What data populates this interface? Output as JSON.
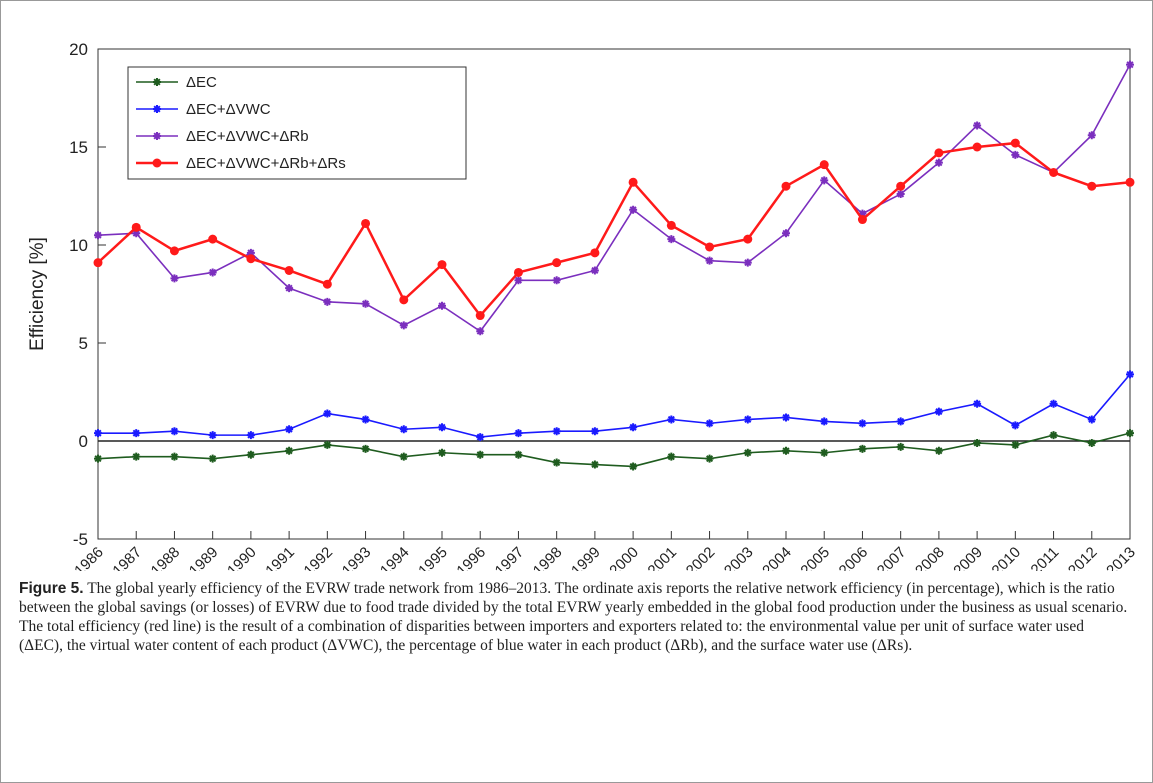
{
  "chart_data": {
    "type": "line",
    "ylabel": "Efficiency [%]",
    "categories": [
      "1986",
      "1987",
      "1988",
      "1989",
      "1990",
      "1991",
      "1992",
      "1993",
      "1994",
      "1995",
      "1996",
      "1997",
      "1998",
      "1999",
      "2000",
      "2001",
      "2002",
      "2003",
      "2004",
      "2005",
      "2006",
      "2007",
      "2008",
      "2009",
      "2010",
      "2011",
      "2012",
      "2013"
    ],
    "ylim": [
      -5,
      20
    ],
    "yticks": [
      -5,
      0,
      5,
      10,
      15,
      20
    ],
    "legend": "upper left",
    "series": [
      {
        "name": "ΔEC",
        "color": "#1f5c1f",
        "marker": "asterisk",
        "values": [
          -0.9,
          -0.8,
          -0.8,
          -0.9,
          -0.7,
          -0.5,
          -0.2,
          -0.4,
          -0.8,
          -0.6,
          -0.7,
          -0.7,
          -1.1,
          -1.2,
          -1.3,
          -0.8,
          -0.9,
          -0.6,
          -0.5,
          -0.6,
          -0.4,
          -0.3,
          -0.5,
          -0.1,
          -0.2,
          0.3,
          -0.1,
          0.4
        ]
      },
      {
        "name": "ΔEC+ΔVWC",
        "color": "#1a1aff",
        "marker": "asterisk",
        "values": [
          0.4,
          0.4,
          0.5,
          0.3,
          0.3,
          0.6,
          1.4,
          1.1,
          0.6,
          0.7,
          0.2,
          0.4,
          0.5,
          0.5,
          0.7,
          1.1,
          0.9,
          1.1,
          1.2,
          1.0,
          0.9,
          1.0,
          1.5,
          1.9,
          0.8,
          1.9,
          1.1,
          3.4
        ]
      },
      {
        "name": "ΔEC+ΔVWC+ΔRb",
        "color": "#7b2fbe",
        "marker": "asterisk",
        "values": [
          10.5,
          10.6,
          8.3,
          8.6,
          9.6,
          7.8,
          7.1,
          7.0,
          5.9,
          6.9,
          5.6,
          8.2,
          8.2,
          8.7,
          11.8,
          10.3,
          9.2,
          9.1,
          10.6,
          13.3,
          11.6,
          12.6,
          14.2,
          16.1,
          14.6,
          13.7,
          15.6,
          19.2
        ]
      },
      {
        "name": "ΔEC+ΔVWC+ΔRb+ΔRs",
        "color": "#ff1a1a",
        "marker": "circle",
        "values": [
          9.1,
          10.9,
          9.7,
          10.3,
          9.3,
          8.7,
          8.0,
          11.1,
          7.2,
          9.0,
          6.4,
          8.6,
          9.1,
          9.6,
          13.2,
          11.0,
          9.9,
          10.3,
          13.0,
          14.1,
          11.3,
          13.0,
          14.7,
          15.0,
          15.2,
          13.7,
          13.0,
          13.2
        ]
      }
    ]
  },
  "caption": {
    "label": "Figure 5.",
    "text": "The global yearly efficiency of the EVRW trade network from 1986–2013. The ordinate axis reports the relative network efficiency (in percentage), which is the ratio between the global savings (or losses) of EVRW due to food trade divided by the total EVRW yearly embedded in the global food production under the business as usual scenario. The total efficiency (red line) is the result of a combination of disparities between importers and exporters related to: the environmental value per unit of surface water used (ΔEC), the virtual water content of each product (ΔVWC), the percentage of blue water in each product (ΔRb), and the surface water use (ΔRs)."
  }
}
